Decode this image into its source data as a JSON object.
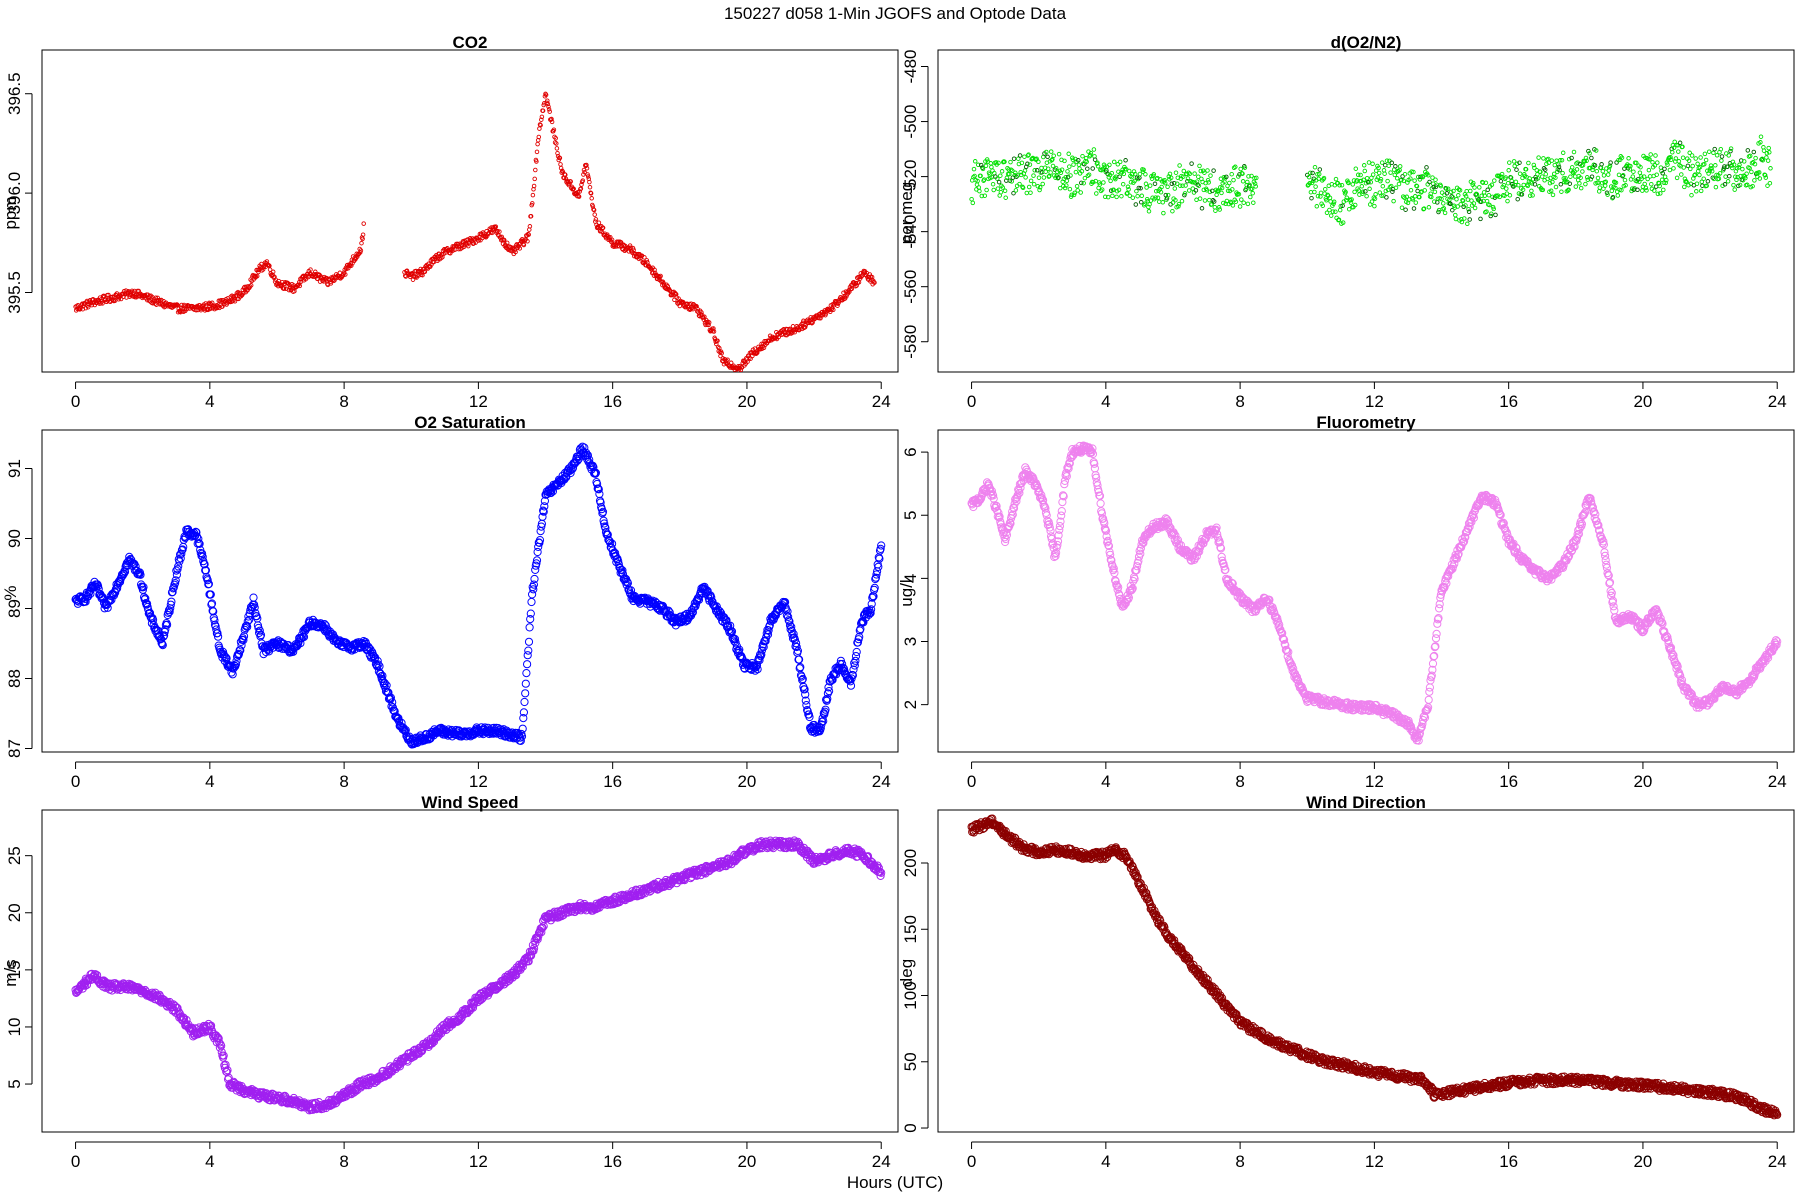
{
  "figure": {
    "main_title": "150227   d058   1-Min  JGOFS and Optode Data",
    "shared_xlabel": "Hours (UTC)"
  },
  "chart_data": [
    {
      "id": "co2",
      "type": "scatter",
      "title": "CO2",
      "xlabel": "",
      "ylabel": "ppm",
      "xlim": [
        -1,
        24.5
      ],
      "ylim": [
        395.1,
        396.72
      ],
      "xticks": [
        0,
        4,
        8,
        12,
        16,
        20,
        24
      ],
      "yticks": [
        395.5,
        396.0,
        396.5
      ],
      "ytick_labels": [
        "395.5",
        "396.0",
        "396.5"
      ],
      "point_color": "#e00000",
      "point_size": "small",
      "series": [
        {
          "x": [
            0.0,
            0.5,
            1.0,
            1.5,
            1.7,
            2.5,
            3.0,
            3.5,
            4.0,
            4.5,
            5.0,
            5.5,
            5.7,
            6.0,
            6.5,
            7.0,
            7.5,
            8.0,
            8.5,
            8.6,
            9.8,
            10.0,
            10.3,
            10.8,
            11.2,
            11.7,
            12.5,
            13.0,
            13.5,
            13.8,
            14.0,
            14.5,
            15.0,
            15.2,
            15.5,
            16.0,
            16.5,
            17.0,
            17.5,
            18.0,
            18.5,
            19.0,
            19.3,
            19.8,
            20.2,
            20.8,
            21.5,
            22.5,
            23.0,
            23.5,
            23.8
          ],
          "y": [
            395.42,
            395.45,
            395.47,
            395.49,
            395.5,
            395.45,
            395.42,
            395.42,
            395.43,
            395.45,
            395.5,
            395.62,
            395.65,
            395.55,
            395.52,
            395.6,
            395.55,
            395.6,
            395.72,
            395.85,
            395.6,
            395.58,
            395.6,
            395.68,
            395.72,
            395.75,
            395.82,
            395.7,
            395.78,
            396.3,
            396.5,
            396.1,
            395.98,
            396.15,
            395.85,
            395.75,
            395.72,
            395.65,
            395.55,
            395.45,
            395.42,
            395.3,
            395.15,
            395.12,
            395.2,
            395.28,
            395.32,
            395.42,
            395.5,
            395.6,
            395.55
          ]
        }
      ]
    },
    {
      "id": "do2n2",
      "type": "scatter",
      "title": "d(O2/N2)",
      "xlabel": "",
      "ylabel": "per meg",
      "xlim": [
        -1,
        24.5
      ],
      "ylim": [
        -591,
        -474
      ],
      "xticks": [
        0,
        4,
        8,
        12,
        16,
        20,
        24
      ],
      "yticks": [
        -580,
        -560,
        -540,
        -520,
        -500,
        -480
      ],
      "ytick_labels": [
        "-580",
        "-560",
        "-540",
        "-520",
        "-500",
        "-480"
      ],
      "point_color": "#00e000",
      "point_color_secondary": "#006000",
      "point_size": "small",
      "series": [
        {
          "x": [
            0.0,
            0.5,
            1.0,
            1.5,
            2.5,
            3.0,
            3.5,
            4.0,
            4.5,
            5.0,
            5.5,
            6.0,
            6.5,
            7.5,
            8.0,
            8.5,
            10.0,
            10.5,
            11.0,
            11.5,
            12.0,
            12.5,
            13.0,
            13.5,
            14.0,
            14.5,
            15.0,
            15.5,
            16.0,
            16.5,
            17.0,
            17.5,
            18.0,
            18.5,
            19.0,
            19.5,
            20.0,
            20.5,
            21.0,
            21.5,
            22.5,
            23.0,
            23.5,
            23.8
          ],
          "y": [
            -522,
            -520,
            -521,
            -519,
            -518,
            -520,
            -517,
            -520,
            -520,
            -524,
            -526,
            -525,
            -522,
            -526,
            -523,
            -525,
            -522,
            -525,
            -530,
            -522,
            -523,
            -521,
            -526,
            -524,
            -528,
            -530,
            -528,
            -527,
            -522,
            -521,
            -520,
            -519,
            -518,
            -516,
            -521,
            -519,
            -518,
            -519,
            -514,
            -519,
            -515,
            -520,
            -513,
            -517
          ]
        }
      ]
    },
    {
      "id": "o2sat",
      "type": "scatter",
      "title": "O2 Saturation",
      "xlabel": "",
      "ylabel": "%",
      "xlim": [
        -1,
        24.5
      ],
      "ylim": [
        86.95,
        91.55
      ],
      "xticks": [
        0,
        4,
        8,
        12,
        16,
        20,
        24
      ],
      "yticks": [
        87,
        88,
        89,
        90,
        91
      ],
      "ytick_labels": [
        "87",
        "88",
        "89",
        "90",
        "91"
      ],
      "point_color": "#0000ff",
      "point_size": "large",
      "series": [
        {
          "x": [
            0.0,
            0.3,
            0.6,
            0.9,
            1.2,
            1.6,
            1.9,
            2.2,
            2.6,
            3.0,
            3.3,
            3.6,
            3.9,
            4.3,
            4.7,
            5.0,
            5.3,
            5.6,
            6.0,
            6.5,
            7.0,
            7.4,
            7.8,
            8.2,
            8.6,
            9.0,
            9.3,
            9.6,
            10.0,
            10.4,
            10.8,
            11.5,
            12.0,
            12.5,
            13.0,
            13.3,
            13.6,
            14.0,
            14.4,
            14.8,
            15.1,
            15.5,
            15.8,
            16.2,
            16.6,
            17.0,
            17.5,
            17.9,
            18.3,
            18.7,
            19.1,
            19.5,
            19.9,
            20.3,
            20.7,
            21.1,
            21.5,
            21.9,
            22.2,
            22.5,
            22.8,
            23.1,
            23.4,
            23.7,
            24.0
          ],
          "y": [
            89.1,
            89.15,
            89.35,
            89.0,
            89.3,
            89.7,
            89.5,
            88.9,
            88.5,
            89.5,
            90.1,
            90.05,
            89.5,
            88.4,
            88.1,
            88.6,
            89.1,
            88.4,
            88.5,
            88.4,
            88.8,
            88.75,
            88.5,
            88.45,
            88.5,
            88.2,
            87.8,
            87.4,
            87.1,
            87.15,
            87.25,
            87.2,
            87.25,
            87.25,
            87.2,
            87.15,
            89.2,
            90.6,
            90.8,
            91.0,
            91.3,
            90.9,
            90.1,
            89.6,
            89.15,
            89.1,
            89.0,
            88.8,
            88.9,
            89.3,
            89.0,
            88.7,
            88.2,
            88.15,
            88.8,
            89.1,
            88.4,
            87.3,
            87.25,
            88.0,
            88.2,
            87.9,
            88.8,
            89.0,
            89.9
          ]
        }
      ]
    },
    {
      "id": "fluor",
      "type": "scatter",
      "title": "Fluorometry",
      "xlabel": "",
      "ylabel": "ug/l",
      "xlim": [
        -1,
        24.5
      ],
      "ylim": [
        1.25,
        6.35
      ],
      "xticks": [
        0,
        4,
        8,
        12,
        16,
        20,
        24
      ],
      "yticks": [
        2,
        3,
        4,
        5,
        6
      ],
      "ytick_labels": [
        "2",
        "3",
        "4",
        "5",
        "6"
      ],
      "point_color": "#ee82ee",
      "point_size": "large",
      "series": [
        {
          "x": [
            0.0,
            0.3,
            0.5,
            0.8,
            1.0,
            1.3,
            1.6,
            1.9,
            2.2,
            2.5,
            2.8,
            3.0,
            3.3,
            3.6,
            3.9,
            4.2,
            4.5,
            4.8,
            5.1,
            5.4,
            5.8,
            6.2,
            6.6,
            7.0,
            7.3,
            7.6,
            8.0,
            8.4,
            8.8,
            9.2,
            9.6,
            10.0,
            10.5,
            11.0,
            11.5,
            12.0,
            12.5,
            13.0,
            13.3,
            13.6,
            14.0,
            14.4,
            14.8,
            15.2,
            15.6,
            16.0,
            16.4,
            16.8,
            17.2,
            17.6,
            18.0,
            18.4,
            18.8,
            19.2,
            19.6,
            20.0,
            20.4,
            20.8,
            21.2,
            21.6,
            22.0,
            22.4,
            22.8,
            23.2,
            23.6,
            24.0
          ],
          "y": [
            5.15,
            5.3,
            5.5,
            5.0,
            4.6,
            5.2,
            5.7,
            5.5,
            5.1,
            4.3,
            5.6,
            6.0,
            6.05,
            6.0,
            5.0,
            4.2,
            3.5,
            3.9,
            4.6,
            4.8,
            4.9,
            4.5,
            4.3,
            4.7,
            4.75,
            4.0,
            3.7,
            3.5,
            3.7,
            3.2,
            2.5,
            2.1,
            2.05,
            2.0,
            1.95,
            1.95,
            1.85,
            1.7,
            1.45,
            2.0,
            3.8,
            4.3,
            4.8,
            5.3,
            5.2,
            4.6,
            4.3,
            4.1,
            4.0,
            4.2,
            4.6,
            5.3,
            4.6,
            3.3,
            3.4,
            3.2,
            3.5,
            2.9,
            2.3,
            2.0,
            2.05,
            2.3,
            2.2,
            2.4,
            2.7,
            3.0
          ]
        }
      ]
    },
    {
      "id": "windspeed",
      "type": "scatter",
      "title": "Wind Speed",
      "xlabel": "",
      "ylabel": "m/s",
      "xlim": [
        -1,
        24.5
      ],
      "ylim": [
        0.8,
        29
      ],
      "xticks": [
        0,
        4,
        8,
        12,
        16,
        20,
        24
      ],
      "yticks": [
        5,
        10,
        15,
        20,
        25
      ],
      "ytick_labels": [
        "5",
        "10",
        "15",
        "20",
        "25"
      ],
      "point_color": "#a020f0",
      "point_size": "large",
      "series": [
        {
          "x": [
            0.0,
            0.5,
            1.0,
            1.5,
            2.0,
            2.5,
            3.0,
            3.5,
            4.0,
            4.3,
            4.6,
            5.0,
            5.5,
            6.0,
            6.5,
            7.0,
            7.5,
            8.0,
            8.5,
            9.0,
            9.5,
            10.0,
            10.5,
            11.0,
            11.5,
            12.0,
            12.5,
            13.0,
            13.5,
            14.0,
            14.5,
            15.0,
            15.5,
            16.0,
            16.5,
            17.0,
            17.5,
            18.0,
            18.5,
            19.0,
            19.5,
            20.0,
            20.5,
            21.0,
            21.5,
            22.0,
            22.5,
            23.0,
            23.5,
            24.0
          ],
          "y": [
            13.0,
            14.5,
            13.5,
            13.5,
            13.2,
            12.5,
            11.5,
            9.5,
            10.0,
            8.5,
            5.0,
            4.5,
            4.0,
            3.8,
            3.5,
            3.0,
            3.2,
            4.0,
            5.0,
            5.5,
            6.5,
            7.5,
            8.5,
            10.0,
            11.0,
            12.5,
            13.5,
            14.5,
            16.0,
            19.5,
            20.0,
            20.5,
            20.5,
            21.0,
            21.5,
            22.0,
            22.5,
            23.0,
            23.5,
            24.0,
            24.5,
            25.5,
            26.0,
            26.0,
            26.0,
            24.5,
            25.0,
            25.5,
            25.0,
            23.5
          ]
        }
      ]
    },
    {
      "id": "winddir",
      "type": "scatter",
      "title": "Wind Direction",
      "xlabel": "",
      "ylabel": "deg",
      "xlim": [
        -1,
        24.5
      ],
      "ylim": [
        -3,
        240
      ],
      "xticks": [
        0,
        4,
        8,
        12,
        16,
        20,
        24
      ],
      "yticks": [
        0,
        50,
        100,
        150,
        200
      ],
      "ytick_labels": [
        "0",
        "50",
        "100",
        "150",
        "200"
      ],
      "point_color": "#8b0000",
      "point_size": "large",
      "series": [
        {
          "x": [
            0.0,
            0.3,
            0.6,
            1.0,
            1.5,
            2.0,
            2.5,
            3.0,
            3.5,
            4.0,
            4.3,
            4.6,
            5.0,
            5.3,
            5.6,
            6.0,
            6.5,
            7.0,
            7.5,
            8.0,
            8.5,
            9.0,
            9.5,
            10.0,
            10.5,
            11.0,
            11.5,
            12.0,
            12.5,
            13.0,
            13.4,
            13.8,
            14.5,
            15.0,
            15.5,
            16.0,
            16.5,
            17.0,
            17.5,
            18.0,
            18.5,
            19.0,
            19.5,
            20.0,
            20.5,
            21.0,
            21.5,
            22.0,
            22.5,
            23.0,
            23.5,
            24.0
          ],
          "y": [
            225,
            228,
            232,
            222,
            212,
            208,
            210,
            208,
            205,
            206,
            210,
            205,
            185,
            170,
            155,
            140,
            125,
            110,
            95,
            80,
            72,
            65,
            60,
            55,
            50,
            48,
            45,
            42,
            40,
            38,
            37,
            25,
            28,
            30,
            32,
            34,
            35,
            36,
            36,
            36,
            35,
            34,
            33,
            32,
            31,
            30,
            28,
            27,
            25,
            22,
            15,
            10
          ]
        }
      ]
    }
  ]
}
